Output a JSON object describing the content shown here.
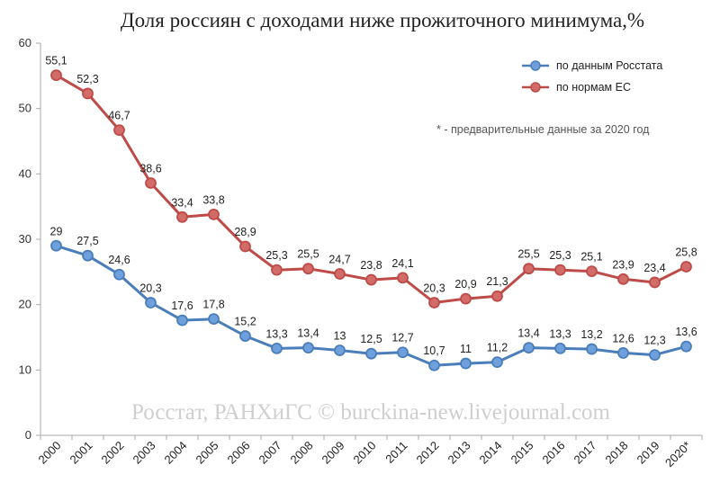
{
  "chart_data": {
    "type": "line",
    "title": "Доля россиян с доходами ниже прожиточного минимума,%",
    "categories": [
      "2000",
      "2001",
      "2002",
      "2003",
      "2004",
      "2005",
      "2006",
      "2007",
      "2008",
      "2009",
      "2010",
      "2011",
      "2012",
      "2013",
      "2014",
      "2015",
      "2016",
      "2017",
      "2018",
      "2019",
      "2020*"
    ],
    "series": [
      {
        "name": "по данным Росстата",
        "color": "#4a7ebb",
        "marker_fill": "#6fa0dc",
        "values": [
          29,
          27.5,
          24.6,
          20.3,
          17.6,
          17.8,
          15.2,
          13.3,
          13.4,
          13,
          12.5,
          12.7,
          10.7,
          11,
          11.2,
          13.4,
          13.3,
          13.2,
          12.6,
          12.3,
          13.6
        ],
        "labels": [
          "29",
          "27,5",
          "24,6",
          "20,3",
          "17,6",
          "17,8",
          "15,2",
          "13,3",
          "13,4",
          "13",
          "12,5",
          "12,7",
          "10,7",
          "11",
          "11,2",
          "13,4",
          "13,3",
          "13,2",
          "12,6",
          "12,3",
          "13,6"
        ]
      },
      {
        "name": "по нормам ЕС",
        "color": "#be4b48",
        "marker_fill": "#d26c68",
        "values": [
          55.1,
          52.3,
          46.7,
          38.6,
          33.4,
          33.8,
          28.9,
          25.3,
          25.5,
          24.7,
          23.8,
          24.1,
          20.3,
          20.9,
          21.3,
          25.5,
          25.3,
          25.1,
          23.9,
          23.4,
          25.8
        ],
        "labels": [
          "55,1",
          "52,3",
          "46,7",
          "38,6",
          "33,4",
          "33,8",
          "28,9",
          "25,3",
          "25,5",
          "24,7",
          "23,8",
          "24,1",
          "20,3",
          "20,9",
          "21,3",
          "25,5",
          "25,3",
          "25,1",
          "23,9",
          "23,4",
          "25,8"
        ]
      }
    ],
    "ylim": [
      0,
      60
    ],
    "yticks": [
      "0",
      "10",
      "20",
      "30",
      "40",
      "50",
      "60"
    ],
    "xlabel": "",
    "ylabel": "",
    "grid": false,
    "legend_position": "top-right",
    "note": "* - предварительные данные за 2020 год",
    "watermark": "Росстат, РАНХиГС © burckina-new.livejournal.com"
  }
}
